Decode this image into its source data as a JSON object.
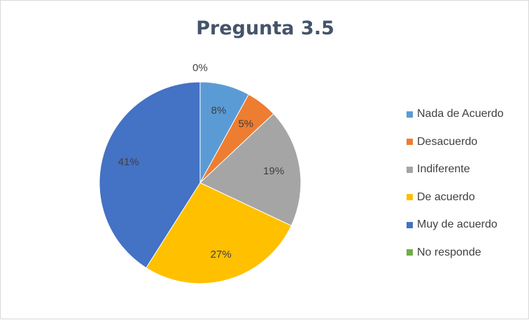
{
  "chart_data": {
    "type": "pie",
    "title": "Pregunta 3.5",
    "legend_position": "right",
    "slices": [
      {
        "name": "Nada de Acuerdo",
        "value": 8,
        "label": "8%",
        "color": "#5b9bd5"
      },
      {
        "name": "Desacuerdo",
        "value": 5,
        "label": "5%",
        "color": "#ed7d31"
      },
      {
        "name": "Indiferente",
        "value": 19,
        "label": "19%",
        "color": "#a5a5a5"
      },
      {
        "name": "De acuerdo",
        "value": 27,
        "label": "27%",
        "color": "#ffc000"
      },
      {
        "name": "Muy de acuerdo",
        "value": 41,
        "label": "41%",
        "color": "#4472c4"
      },
      {
        "name": "No responde",
        "value": 0,
        "label": "0%",
        "color": "#70ad47"
      }
    ]
  }
}
